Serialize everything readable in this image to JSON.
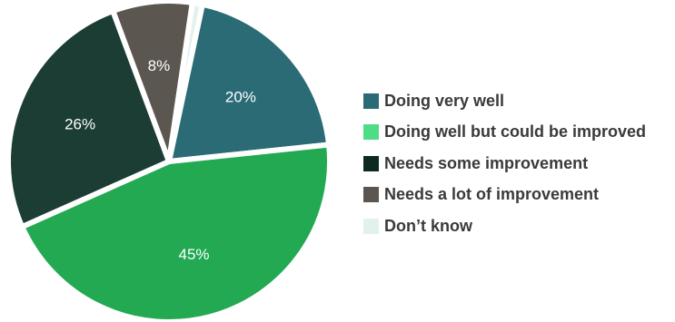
{
  "chart_data": {
    "type": "pie",
    "title": "",
    "slices": [
      {
        "label": "Doing very well",
        "value": 20,
        "value_label": "20%",
        "color": "#2a6b75",
        "legend_color": "#2a6b75",
        "text_color": "#ffffff"
      },
      {
        "label": "Doing well but could be improved",
        "value": 45,
        "value_label": "45%",
        "color": "#22a952",
        "legend_color": "#4fdc86",
        "text_color": "#ffffff"
      },
      {
        "label": "Needs some improvement",
        "value": 26,
        "value_label": "26%",
        "color": "#1b3d34",
        "legend_color": "#0e2a1f",
        "text_color": "#ffffff"
      },
      {
        "label": "Needs a lot of improvement",
        "value": 8,
        "value_label": "8%",
        "color": "#5b5650",
        "legend_color": "#5b5650",
        "text_color": "#ffffff"
      },
      {
        "label": "Don’t know",
        "value": 1,
        "value_label": "",
        "color": "#e3f1ee",
        "legend_color": "#e3f1ee",
        "text_color": "#2a2a2a"
      }
    ],
    "start_angle_deg": 12,
    "direction": "clockwise",
    "legend_position": "right"
  }
}
